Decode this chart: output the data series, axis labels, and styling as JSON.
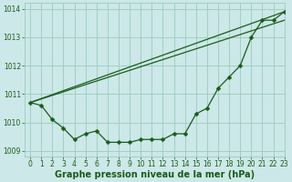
{
  "xlabel": "Graphe pression niveau de la mer (hPa)",
  "xlim": [
    -0.5,
    23
  ],
  "ylim": [
    1008.8,
    1014.2
  ],
  "yticks": [
    1009,
    1010,
    1011,
    1012,
    1013,
    1014
  ],
  "xticks": [
    0,
    1,
    2,
    3,
    4,
    5,
    6,
    7,
    8,
    9,
    10,
    11,
    12,
    13,
    14,
    15,
    16,
    17,
    18,
    19,
    20,
    21,
    22,
    23
  ],
  "bg_color": "#cce8e8",
  "grid_color": "#99ccbb",
  "line_color": "#1a5c1a",
  "series_main": {
    "x": [
      0,
      1,
      2,
      3,
      4,
      5,
      6,
      7,
      8,
      9,
      10,
      11,
      12,
      13,
      14,
      15,
      16,
      17,
      18,
      19,
      20,
      21,
      22,
      23
    ],
    "y": [
      1010.7,
      1010.6,
      1010.1,
      1009.8,
      1009.4,
      1009.6,
      1009.7,
      1009.3,
      1009.3,
      1009.3,
      1009.4,
      1009.4,
      1009.4,
      1009.6,
      1009.6,
      1010.3,
      1010.5,
      1011.2,
      1011.6,
      1012.0,
      1013.0,
      1013.6,
      1013.6,
      1013.9
    ]
  },
  "series_line1": {
    "x": [
      0,
      23
    ],
    "y": [
      1010.7,
      1013.9
    ]
  },
  "series_line2": {
    "x": [
      0,
      23
    ],
    "y": [
      1010.7,
      1013.6
    ]
  },
  "xlabel_fontsize": 7,
  "tick_fontsize": 5.5,
  "tick_color": "#1a5c1a",
  "label_color": "#1a5c1a",
  "markersize": 2.5,
  "linewidth": 0.9
}
